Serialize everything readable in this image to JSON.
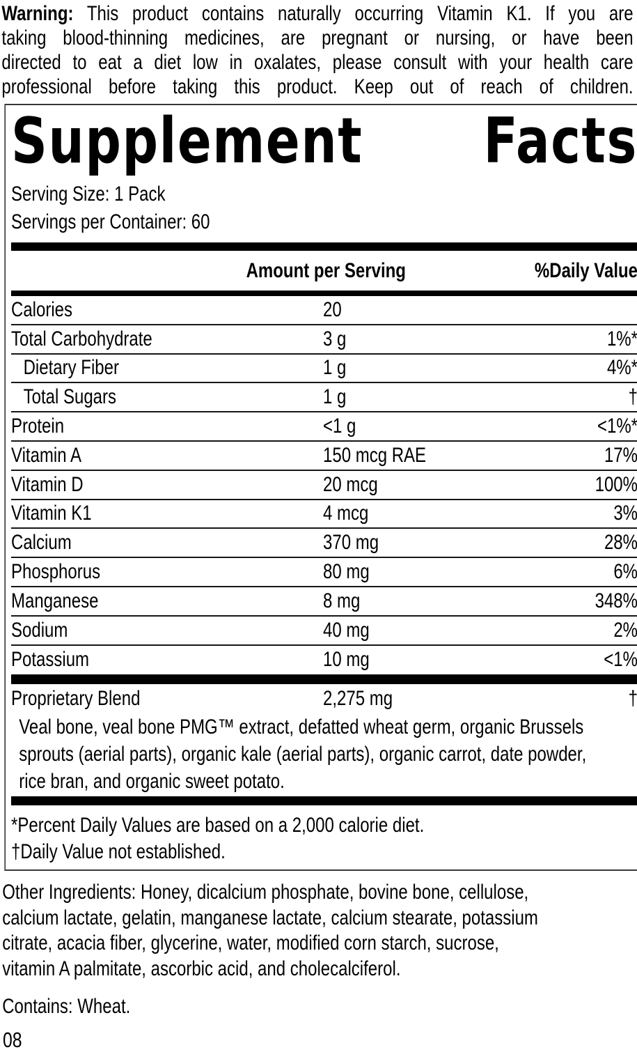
{
  "warning": {
    "label": "Warning:",
    "lines": [
      " This product contains naturally occurring Vitamin K1. If you are",
      "taking blood-thinning medicines, are pregnant or nursing, or have been",
      "directed to eat a diet low in oxalates, please consult with your health care",
      "professional before taking this product. Keep out of reach of children."
    ]
  },
  "facts": {
    "title": "Supplement Facts",
    "serving_size": "Serving Size: 1 Pack",
    "servings_per_container": "Servings per Container: 60",
    "columns": {
      "amount": "Amount per Serving",
      "daily_value": "%Daily Value"
    },
    "rows": [
      {
        "label": "Calories",
        "amount": "20",
        "dv": ""
      },
      {
        "label": "Total Carbohydrate",
        "amount": "3 g",
        "dv": "1%*"
      },
      {
        "label": "Dietary Fiber",
        "amount": "1 g",
        "dv": "4%*"
      },
      {
        "label": "Total Sugars",
        "amount": "1 g",
        "dv": "†"
      },
      {
        "label": "Protein",
        "amount": "<1 g",
        "dv": "<1%*"
      },
      {
        "label": "Vitamin A",
        "amount": "150 mcg RAE",
        "dv": "17%"
      },
      {
        "label": "Vitamin D",
        "amount": "20 mcg",
        "dv": "100%"
      },
      {
        "label": "Vitamin K1",
        "amount": "4 mcg",
        "dv": "3%"
      },
      {
        "label": "Calcium",
        "amount": "370 mg",
        "dv": "28%"
      },
      {
        "label": "Phosphorus",
        "amount": "80 mg",
        "dv": "6%"
      },
      {
        "label": "Manganese",
        "amount": "8 mg",
        "dv": "348%"
      },
      {
        "label": "Sodium",
        "amount": "40 mg",
        "dv": "2%"
      },
      {
        "label": "Potassium",
        "amount": "10 mg",
        "dv": "<1%"
      }
    ],
    "blend_row": {
      "label": "Proprietary Blend",
      "amount": "2,275 mg",
      "dv": "†"
    },
    "blend_description_lines": [
      "Veal bone, veal bone PMG™ extract, defatted wheat germ, organic Brussels",
      "sprouts (aerial parts), organic kale (aerial parts), organic carrot, date powder,",
      "rice bran, and organic sweet potato."
    ],
    "footnotes": [
      "*Percent Daily Values are based on a 2,000 calorie diet.",
      "†Daily Value not established."
    ]
  },
  "other_ingredients_lines": [
    "Other Ingredients: Honey, dicalcium phosphate, bovine bone, cellulose,",
    "calcium lactate, gelatin, manganese lactate, calcium stearate, potassium",
    "citrate, acacia fiber, glycerine, water, modified corn starch, sucrose,",
    "vitamin A palmitate, ascorbic acid, and cholecalciferol."
  ],
  "contains": "Contains: Wheat.",
  "page_number": "08",
  "colors": {
    "text": "#000000",
    "bars": "#000000",
    "box_border": "#383838"
  }
}
